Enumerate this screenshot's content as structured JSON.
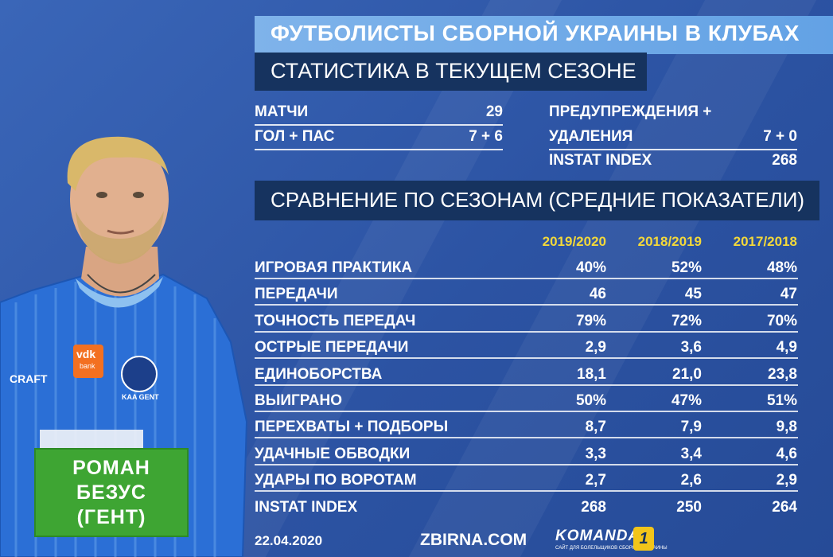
{
  "header": {
    "title": "ФУТБОЛИСТЫ СБОРНОЙ УКРАИНЫ В КЛУБАХ",
    "subtitle": "СТАТИСТИКА В ТЕКУЩЕМ СЕЗОНЕ"
  },
  "player": {
    "name_line1": "РОМАН",
    "name_line2": "БЕЗУС",
    "name_line3": "(ГЕНТ)",
    "sponsor_top": "vdk",
    "sponsor_bottom": "bank",
    "brand": "CRAFT",
    "club_crest_text": "KAA GENT"
  },
  "current": {
    "matches_label": "МАТЧИ",
    "matches_value": "29",
    "goals_label": "ГОЛ + ПАС",
    "goals_value": "7 + 6",
    "cards_label_1": "ПРЕДУПРЕЖДЕНИЯ +",
    "cards_label_2": "УДАЛЕНИЯ",
    "cards_value": "7 + 0",
    "instat_label": "INSTAT INDEX",
    "instat_value": "268"
  },
  "comparison": {
    "heading": "СРАВНЕНИЕ ПО СЕЗОНАМ (СРЕДНИЕ ПОКАЗАТЕЛИ)",
    "seasons": [
      "2019/2020",
      "2018/2019",
      "2017/2018"
    ],
    "rows": [
      {
        "label": "ИГРОВАЯ ПРАКТИКА",
        "values": [
          "40%",
          "52%",
          "48%"
        ]
      },
      {
        "label": "ПЕРЕДАЧИ",
        "values": [
          "46",
          "45",
          "47"
        ]
      },
      {
        "label": "ТОЧНОСТЬ ПЕРЕДАЧ",
        "values": [
          "79%",
          "72%",
          "70%"
        ]
      },
      {
        "label": "ОСТРЫЕ ПЕРЕДАЧИ",
        "values": [
          "2,9",
          "3,6",
          "4,9"
        ]
      },
      {
        "label": "ЕДИНОБОРСТВА",
        "values": [
          "18,1",
          "21,0",
          "23,8"
        ]
      },
      {
        "label": "ВЫИГРАНО",
        "values": [
          "50%",
          "47%",
          "51%"
        ]
      },
      {
        "label": "ПЕРЕХВАТЫ + ПОДБОРЫ",
        "values": [
          "8,7",
          "7,9",
          "9,8"
        ]
      },
      {
        "label": "УДАЧНЫЕ ОБВОДКИ",
        "values": [
          "3,3",
          "3,4",
          "4,6"
        ]
      },
      {
        "label": "УДАРЫ ПО ВОРОТАМ",
        "values": [
          "2,7",
          "2,6",
          "2,9"
        ]
      },
      {
        "label": "INSTAT INDEX",
        "values": [
          "268",
          "250",
          "264"
        ]
      }
    ]
  },
  "footer": {
    "date": "22.04.2020",
    "site": "ZBIRNA.COM",
    "logo_text": "KOMANDA",
    "logo_sub": "САЙТ ДЛЯ БОЛЕЛЬЩИКОВ СБОРНОЙ УКРАИНЫ",
    "logo_badge": "1"
  },
  "colors": {
    "background": "#2f57a8",
    "title_bar": "#6fa9e8",
    "dark_bar": "#16335f",
    "season_header": "#f3d83a",
    "name_box": "#3ea533"
  }
}
